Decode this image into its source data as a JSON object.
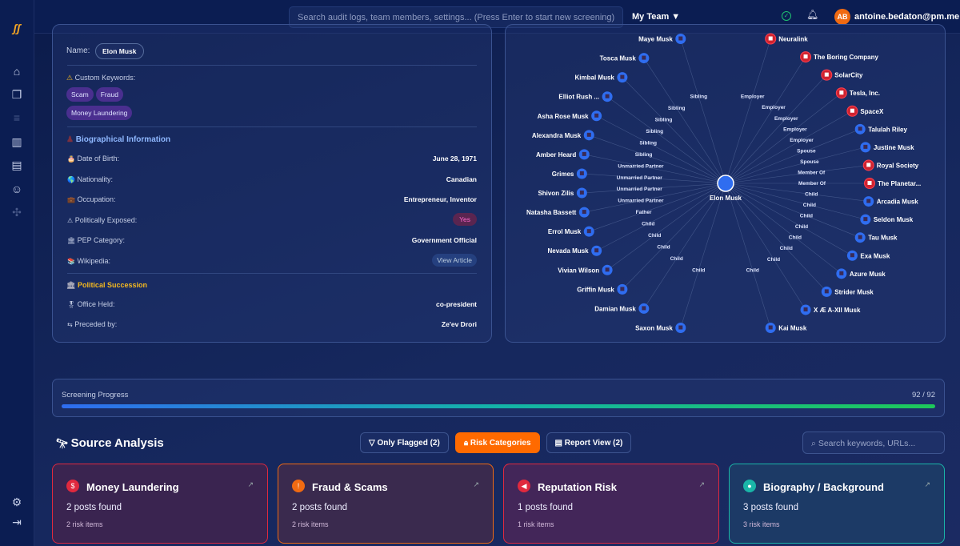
{
  "header": {
    "search_placeholder": "Search audit logs, team members, settings... (Press Enter to start new screening)",
    "team": "My Team ▼",
    "avatar_initials": "AB",
    "user_email": "antoine.bedaton@pm.me"
  },
  "sidebar": {
    "items": [
      "home-icon",
      "documents-icon",
      "list-icon",
      "chart-icon",
      "report-icon",
      "team-icon",
      "plugin-icon"
    ],
    "bottom": [
      "settings-icon",
      "logout-icon"
    ]
  },
  "profile": {
    "name_label": "Name:",
    "name": "Elon Musk",
    "keywords_label": "Custom Keywords:",
    "keywords": [
      "Scam",
      "Fraud",
      "Money Laundering"
    ],
    "bio_title": "Biographical Information",
    "bio": [
      {
        "icon": "🎂",
        "label": "Date of Birth:",
        "value": "June 28, 1971"
      },
      {
        "icon": "🌎",
        "label": "Nationality:",
        "value": "Canadian"
      },
      {
        "icon": "💼",
        "label": "Occupation:",
        "value": "Entrepreneur, Inventor"
      },
      {
        "icon": "⚠",
        "label": "Politically Exposed:",
        "value": "Yes"
      },
      {
        "icon": "🏛",
        "label": "PEP Category:",
        "value": "Government Official"
      },
      {
        "icon": "📚",
        "label": "Wikipedia:",
        "value": "View Article"
      }
    ],
    "succession_title": "Political Succession",
    "succession": [
      {
        "icon": "🎖",
        "label": "Office Held:",
        "value": "co-president"
      },
      {
        "icon": "⇆",
        "label": "Preceded by:",
        "value": "Ze'ev Drori"
      }
    ]
  },
  "graph": {
    "center": "Elon Musk",
    "nodes": [
      {
        "name": "Neuralink",
        "type": "org",
        "rel": "Employer"
      },
      {
        "name": "The Boring Company",
        "type": "org",
        "rel": "Employer"
      },
      {
        "name": "SolarCity",
        "type": "org",
        "rel": "Employer"
      },
      {
        "name": "Tesla, Inc.",
        "type": "org",
        "rel": "Employer"
      },
      {
        "name": "SpaceX",
        "type": "org",
        "rel": "Employer"
      },
      {
        "name": "Talulah Riley",
        "type": "person",
        "rel": "Spouse"
      },
      {
        "name": "Justine Musk",
        "type": "person",
        "rel": "Spouse"
      },
      {
        "name": "Royal Society",
        "type": "org",
        "rel": "Member Of"
      },
      {
        "name": "The Planetar...",
        "type": "org",
        "rel": "Member Of"
      },
      {
        "name": "Arcadia Musk",
        "type": "person",
        "rel": "Child"
      },
      {
        "name": "Seldon Musk",
        "type": "person",
        "rel": "Child"
      },
      {
        "name": "Tau Musk",
        "type": "person",
        "rel": "Child"
      },
      {
        "name": "Exa Musk",
        "type": "person",
        "rel": "Child"
      },
      {
        "name": "Azure Musk",
        "type": "person",
        "rel": "Child"
      },
      {
        "name": "Strider Musk",
        "type": "person",
        "rel": "Child"
      },
      {
        "name": "X Æ A-XII Musk",
        "type": "person",
        "rel": "Child"
      },
      {
        "name": "Kai Musk",
        "type": "person",
        "rel": "Child"
      },
      {
        "name": "Saxon Musk",
        "type": "person",
        "rel": "Child"
      },
      {
        "name": "Damian Musk",
        "type": "person",
        "rel": "Child"
      },
      {
        "name": "Griffin Musk",
        "type": "person",
        "rel": "Child"
      },
      {
        "name": "Vivian Wilson",
        "type": "person",
        "rel": "Child"
      },
      {
        "name": "Nevada Musk",
        "type": "person",
        "rel": "Child"
      },
      {
        "name": "Errol Musk",
        "type": "person",
        "rel": "Father"
      },
      {
        "name": "Natasha Bassett",
        "type": "person",
        "rel": "Unmarried Partner"
      },
      {
        "name": "Shivon Zilis",
        "type": "person",
        "rel": "Unmarried Partner"
      },
      {
        "name": "Grimes",
        "type": "person",
        "rel": "Unmarried Partner"
      },
      {
        "name": "Amber Heard",
        "type": "person",
        "rel": "Unmarried Partner"
      },
      {
        "name": "Alexandra Musk",
        "type": "person",
        "rel": "Sibling"
      },
      {
        "name": "Asha Rose Musk",
        "type": "person",
        "rel": "Sibling"
      },
      {
        "name": "Elliot Rush ...",
        "type": "person",
        "rel": "Sibling"
      },
      {
        "name": "Kimbal Musk",
        "type": "person",
        "rel": "Sibling"
      },
      {
        "name": "Tosca Musk",
        "type": "person",
        "rel": "Sibling"
      },
      {
        "name": "Maye Musk",
        "type": "person",
        "rel": "Sibling"
      }
    ],
    "colors": {
      "person": "#2f6df0",
      "org": "#d0232f"
    }
  },
  "progress": {
    "label": "Screening Progress",
    "text": "92 / 92",
    "value": 92,
    "total": 92
  },
  "source": {
    "title": "Source Analysis",
    "only_flagged": "Only Flagged (2)",
    "risk_categories": "Risk Categories",
    "report_view": "Report View (2)",
    "search_placeholder": "Search keywords, URLs...",
    "cards": [
      {
        "title": "Money Laundering",
        "posts": "2 posts found",
        "risk": "2 risk items",
        "color": "#e0293e",
        "icon": "$"
      },
      {
        "title": "Fraud & Scams",
        "posts": "2 posts found",
        "risk": "2 risk items",
        "color": "#f06a12",
        "icon": "!"
      },
      {
        "title": "Reputation Risk",
        "posts": "1 posts found",
        "risk": "1 risk items",
        "color": "#e0293e",
        "icon": "◀"
      },
      {
        "title": "Biography / Background",
        "posts": "3 posts found",
        "risk": "3 risk items",
        "color": "#1ab5a8",
        "icon": "●"
      }
    ]
  }
}
